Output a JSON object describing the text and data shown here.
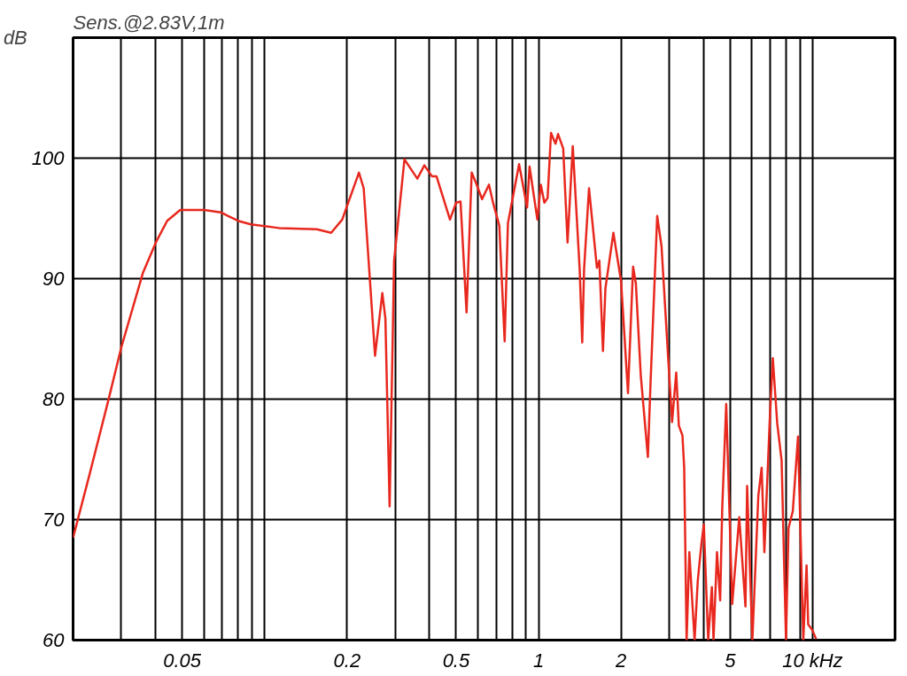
{
  "chart_data": {
    "type": "line",
    "title": "Sens.@2.83V,1m",
    "ylabel": "dB",
    "log": "x",
    "grid": true,
    "marker": "none",
    "line_style": "solid",
    "xlim": [
      0.02,
      20
    ],
    "ylim": [
      60,
      110
    ],
    "xticks": [
      {
        "value": 0.02,
        "label": null
      },
      {
        "value": 0.03,
        "label": null
      },
      {
        "value": 0.04,
        "label": null
      },
      0.05,
      {
        "value": 0.06,
        "label": null
      },
      {
        "value": 0.07,
        "label": null
      },
      {
        "value": 0.08,
        "label": null
      },
      {
        "value": 0.09,
        "label": null
      },
      {
        "value": 0.1,
        "label": null
      },
      0.2,
      {
        "value": 0.3,
        "label": null
      },
      {
        "value": 0.4,
        "label": null
      },
      0.5,
      {
        "value": 0.6,
        "label": null
      },
      {
        "value": 0.7,
        "label": null
      },
      {
        "value": 0.8,
        "label": null
      },
      {
        "value": 0.9,
        "label": null
      },
      1,
      2,
      {
        "value": 3,
        "label": null
      },
      {
        "value": 4,
        "label": null
      },
      5,
      {
        "value": 6,
        "label": null
      },
      {
        "value": 7,
        "label": null
      },
      {
        "value": 8,
        "label": null
      },
      {
        "value": 9,
        "label": null
      },
      {
        "value": 10,
        "label": "10 kHz"
      }
    ],
    "yticks": [
      60,
      70,
      80,
      90,
      100
    ],
    "series": [
      {
        "color": "#e8281e",
        "x": [
          0.02,
          0.023,
          0.0269,
          0.03,
          0.036,
          0.0401,
          0.0441,
          0.0492,
          0.0603,
          0.0692,
          0.08,
          0.0891,
          0.113,
          0.155,
          0.175,
          0.192,
          0.221,
          0.23,
          0.242,
          0.253,
          0.269,
          0.276,
          0.286,
          0.297,
          0.324,
          0.361,
          0.383,
          0.408,
          0.424,
          0.475,
          0.5,
          0.519,
          0.546,
          0.57,
          0.592,
          0.622,
          0.659,
          0.684,
          0.719,
          0.752,
          0.773,
          0.849,
          0.908,
          0.927,
          0.99,
          1.019,
          1.05,
          1.079,
          1.11,
          1.153,
          1.178,
          1.23,
          1.276,
          1.333,
          1.413,
          1.443,
          1.466,
          1.528,
          1.633,
          1.667,
          1.718,
          1.754,
          1.875,
          2.0,
          2.12,
          2.213,
          2.265,
          2.36,
          2.506,
          2.56,
          2.71,
          2.81,
          2.94,
          3.07,
          3.18,
          3.25,
          3.35,
          3.4,
          3.42,
          3.47,
          3.55,
          3.71,
          3.81,
          3.93,
          4.01,
          4.16,
          4.29,
          4.35,
          4.48,
          4.6,
          4.68,
          4.84,
          5.09,
          5.4,
          5.69,
          5.77,
          6.03,
          6.34,
          6.52,
          6.67,
          6.97,
          7.16,
          7.43,
          7.71,
          8.0,
          8.17,
          8.47,
          8.85,
          9.25,
          9.51,
          9.64,
          10.0,
          10.3
        ],
        "values": [
          68.5,
          73.8,
          79.9,
          84.3,
          90.5,
          93.0,
          94.8,
          95.7,
          95.7,
          95.5,
          94.8,
          94.5,
          94.2,
          94.1,
          93.8,
          94.9,
          98.8,
          97.5,
          90.1,
          83.6,
          88.8,
          86.7,
          71.1,
          91.5,
          99.9,
          98.3,
          99.4,
          98.5,
          98.5,
          94.9,
          96.3,
          96.4,
          87.2,
          98.8,
          97.9,
          96.6,
          97.8,
          96.2,
          94.4,
          84.8,
          94.6,
          99.5,
          95.9,
          99.3,
          94.9,
          97.8,
          96.3,
          96.7,
          102.1,
          101.2,
          102.0,
          100.8,
          93.0,
          101.0,
          90.7,
          84.7,
          90.8,
          97.5,
          90.9,
          91.5,
          84.0,
          89.2,
          93.8,
          89.8,
          80.5,
          91.0,
          89.6,
          82.0,
          75.2,
          81.1,
          95.2,
          92.7,
          85.2,
          78.1,
          82.2,
          77.8,
          77.0,
          74.3,
          70.2,
          60,
          67.3,
          60,
          64.9,
          68.0,
          69.6,
          60,
          64.4,
          60,
          67.3,
          63.3,
          70.9,
          79.6,
          63.0,
          70.2,
          62.8,
          72.8,
          60,
          72.0,
          74.3,
          67.3,
          78.0,
          83.4,
          78.0,
          74.9,
          60,
          69.3,
          70.7,
          76.9,
          60,
          66.2,
          61.3,
          60.8,
          60.1
        ]
      }
    ]
  }
}
